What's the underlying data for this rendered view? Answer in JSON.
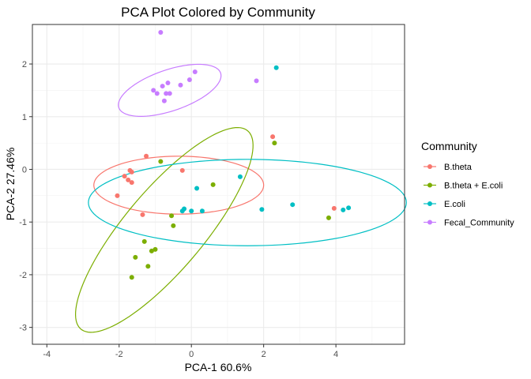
{
  "chart_data": {
    "type": "scatter",
    "title": "PCA Plot Colored by Community",
    "xlabel": "PCA-1 60.6%",
    "ylabel": "PCA-2 27.46%",
    "xlim": [
      -4.4,
      5.9
    ],
    "ylim": [
      -3.32,
      2.75
    ],
    "xticks": [
      -4,
      -2,
      0,
      2,
      4
    ],
    "yticks": [
      -3,
      -2,
      -1,
      0,
      1,
      2
    ],
    "grid": true,
    "legend": {
      "title": "Community",
      "position": "right"
    },
    "series": [
      {
        "name": "B.theta",
        "color": "#F8766D",
        "points": [
          [
            -1.7,
            -0.02
          ],
          [
            -1.65,
            -0.05
          ],
          [
            -1.85,
            -0.13
          ],
          [
            -1.75,
            -0.2
          ],
          [
            -1.65,
            -0.25
          ],
          [
            -1.25,
            0.25
          ],
          [
            -2.05,
            -0.5
          ],
          [
            -1.35,
            -0.86
          ],
          [
            -0.25,
            -0.02
          ],
          [
            2.25,
            0.62
          ],
          [
            3.95,
            -0.74
          ]
        ],
        "ellipse": {
          "cx": -0.35,
          "cy": -0.3,
          "rx": 2.35,
          "ry": 0.55,
          "angle_deg": 0
        }
      },
      {
        "name": "B.theta + E.coli",
        "color": "#7CAE00",
        "points": [
          [
            2.3,
            0.5
          ],
          [
            -0.85,
            0.15
          ],
          [
            0.6,
            -0.29
          ],
          [
            -0.55,
            -0.88
          ],
          [
            -0.5,
            -1.07
          ],
          [
            -1.3,
            -1.37
          ],
          [
            -1.0,
            -1.52
          ],
          [
            -1.1,
            -1.55
          ],
          [
            -1.55,
            -1.67
          ],
          [
            -1.2,
            -1.84
          ],
          [
            -1.65,
            -2.05
          ],
          [
            3.8,
            -0.92
          ]
        ],
        "ellipse": {
          "cx": -0.75,
          "cy": -1.15,
          "rx": 3.0,
          "ry": 0.9,
          "angle_deg": 37
        }
      },
      {
        "name": "E.coli",
        "color": "#00BFC4",
        "points": [
          [
            2.35,
            1.93
          ],
          [
            0.15,
            -0.36
          ],
          [
            1.35,
            -0.14
          ],
          [
            -0.2,
            -0.75
          ],
          [
            -0.25,
            -0.79
          ],
          [
            0.0,
            -0.79
          ],
          [
            0.3,
            -0.79
          ],
          [
            1.95,
            -0.76
          ],
          [
            2.8,
            -0.67
          ],
          [
            4.2,
            -0.77
          ],
          [
            4.35,
            -0.73
          ]
        ],
        "ellipse": {
          "cx": 1.55,
          "cy": -0.63,
          "rx": 4.4,
          "ry": 0.82,
          "angle_deg": 0
        }
      },
      {
        "name": "Fecal_Community",
        "color": "#C77CFF",
        "points": [
          [
            -0.85,
            2.6
          ],
          [
            0.1,
            1.85
          ],
          [
            -0.05,
            1.7
          ],
          [
            1.8,
            1.68
          ],
          [
            -0.65,
            1.64
          ],
          [
            -0.3,
            1.6
          ],
          [
            -0.8,
            1.58
          ],
          [
            -1.05,
            1.5
          ],
          [
            -0.95,
            1.44
          ],
          [
            -0.7,
            1.44
          ],
          [
            -0.6,
            1.44
          ],
          [
            -0.75,
            1.3
          ]
        ],
        "ellipse": {
          "cx": -0.6,
          "cy": 1.5,
          "rx": 1.45,
          "ry": 0.4,
          "angle_deg": 12
        }
      }
    ]
  }
}
